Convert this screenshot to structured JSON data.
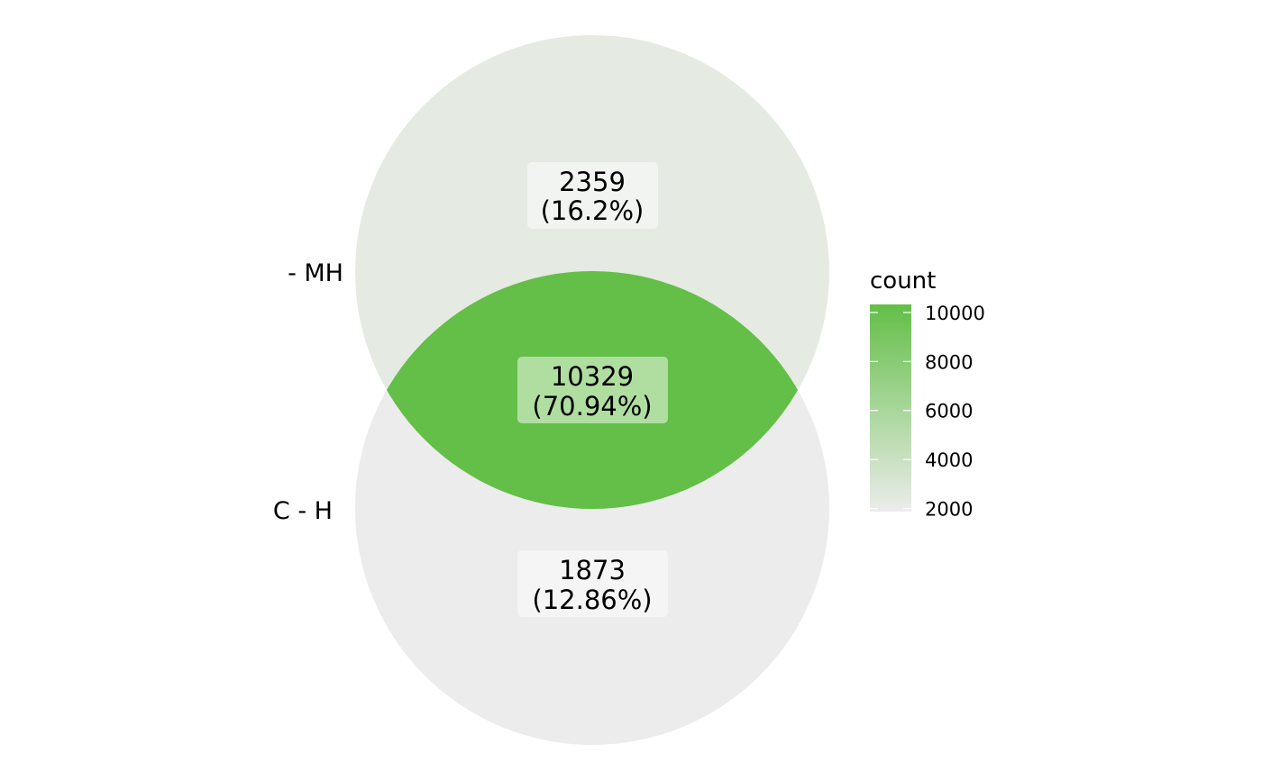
{
  "venn": {
    "sets": [
      {
        "label": "- MH",
        "color": "#e5eae2"
      },
      {
        "label": "C - H",
        "color": "#ececec"
      }
    ],
    "regions": [
      {
        "key": "top_only",
        "count": "2359",
        "percent": "(16.2%)",
        "value": 2359,
        "fill": "#e5eae2",
        "label_bg": "#f2f4f1"
      },
      {
        "key": "overlap",
        "count": "10329",
        "percent": "(70.94%)",
        "value": 10329,
        "fill": "#63bf47",
        "label_bg": "#b0dea1"
      },
      {
        "key": "bottom_only",
        "count": "1873",
        "percent": "(12.86%)",
        "value": 1873,
        "fill": "#ececec",
        "label_bg": "#f5f5f5"
      }
    ]
  },
  "legend": {
    "title": "count",
    "ticks": [
      "10000",
      "8000",
      "6000",
      "4000",
      "2000"
    ],
    "tick_values": [
      10000,
      8000,
      6000,
      4000,
      2000
    ],
    "range": [
      1873,
      10329
    ],
    "color_low": "#ececec",
    "color_high": "#63bf47"
  }
}
